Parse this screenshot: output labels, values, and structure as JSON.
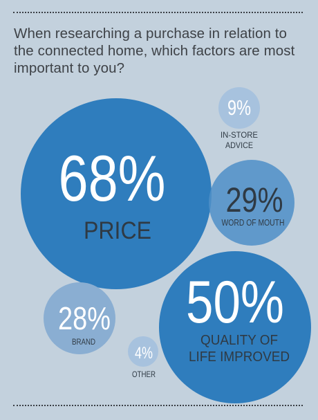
{
  "question": "When researching a purchase in relation to the connected home, which factors are most important to you?",
  "colors": {
    "background": "#c3d1dd",
    "dark_blue": "#2f7dbd",
    "mid_blue": "#4f8fc8",
    "light_blue": "#8aaed2",
    "pale_blue": "#a7c2de",
    "big_text": "#ffffff",
    "label_text": "#2f3a44"
  },
  "chart_data": {
    "type": "bubble",
    "title": "When researching a purchase in relation to the connected home, which factors are most important to you?",
    "unit": "%",
    "items": [
      {
        "value": 68,
        "value_label": "68%",
        "label": "PRICE",
        "label_lines": [
          "PRICE"
        ],
        "fill": "#2f7dbd"
      },
      {
        "value": 50,
        "value_label": "50%",
        "label": "QUALITY OF LIFE IMPROVED",
        "label_lines": [
          "QUALITY OF",
          "LIFE IMPROVED"
        ],
        "fill": "#2f7dbd"
      },
      {
        "value": 29,
        "value_label": "29%",
        "label": "WORD OF MOUTH",
        "label_lines": [
          "WORD OF MOUTH"
        ],
        "fill": "#4f8fc8"
      },
      {
        "value": 28,
        "value_label": "28%",
        "label": "BRAND",
        "label_lines": [
          "BRAND"
        ],
        "fill": "#8aaed2"
      },
      {
        "value": 9,
        "value_label": "9%",
        "label": "IN-STORE ADVICE",
        "label_lines": [
          "IN-STORE",
          "ADVICE"
        ],
        "fill": "#a7c2de"
      },
      {
        "value": 4,
        "value_label": "4%",
        "label": "OTHER",
        "label_lines": [
          "OTHER"
        ],
        "fill": "#a7c2de"
      }
    ]
  }
}
